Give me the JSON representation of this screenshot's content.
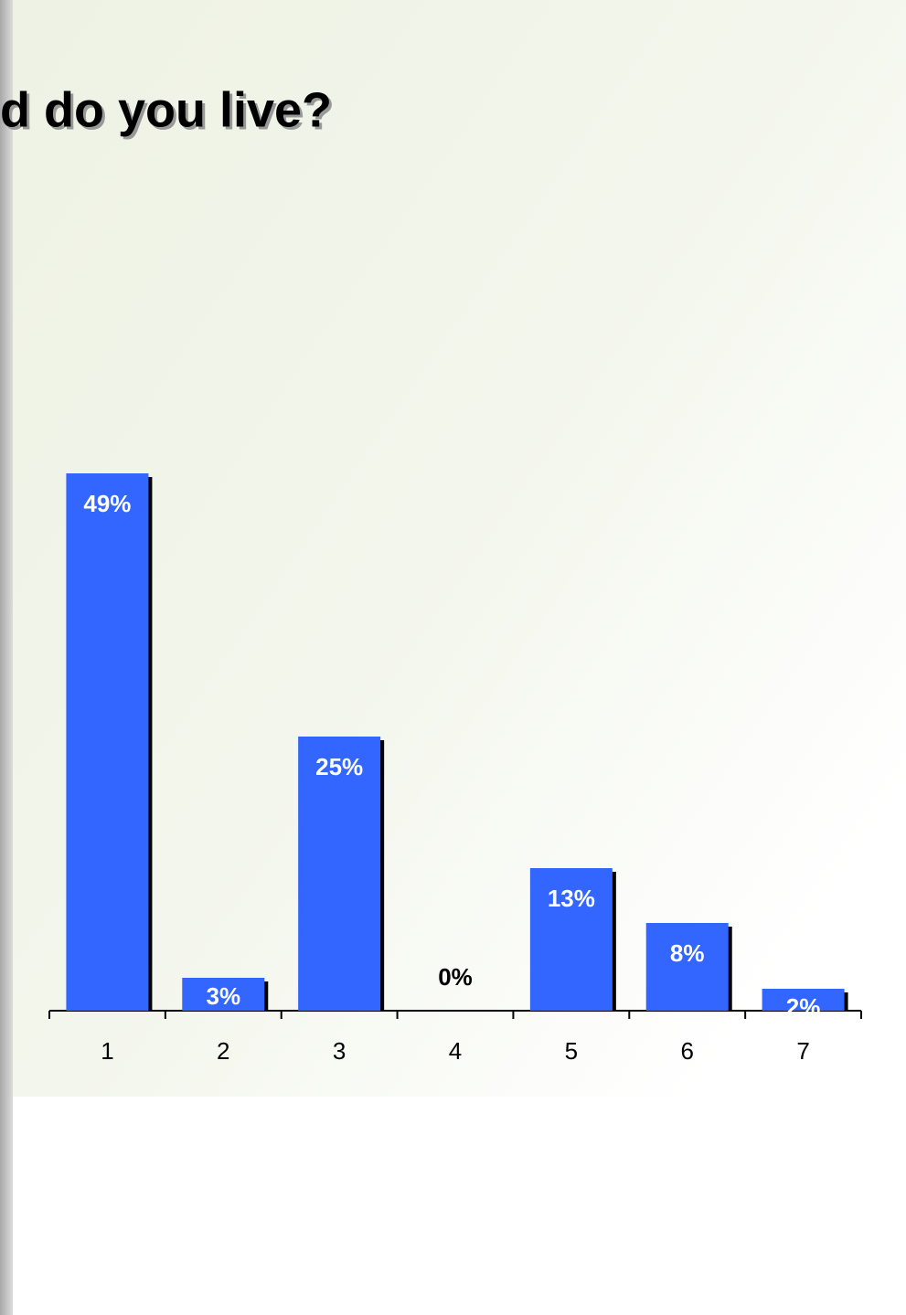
{
  "chart_data": {
    "type": "bar",
    "title": "d do you live?",
    "categories": [
      "1",
      "2",
      "3",
      "4",
      "5",
      "6",
      "7"
    ],
    "values": [
      49,
      3,
      25,
      0,
      13,
      8,
      2
    ],
    "value_labels": [
      "49%",
      "3%",
      "25%",
      "0%",
      "13%",
      "8%",
      "2%"
    ],
    "color": "#3366ff"
  }
}
